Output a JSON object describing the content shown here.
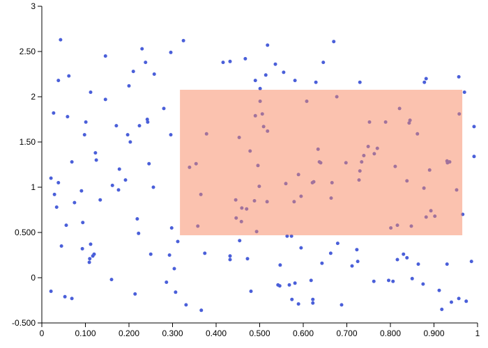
{
  "chart_data": {
    "type": "scatter",
    "color": "#4a5fd9",
    "xlim": [
      0,
      1
    ],
    "ylim": [
      -0.5,
      3
    ],
    "xticks": [
      0,
      {
        "value": 0.1,
        "label": "0.100"
      },
      {
        "value": 0.2,
        "label": "0.200"
      },
      {
        "value": 0.3,
        "label": "0.300"
      },
      {
        "value": 0.4,
        "label": "0.400"
      },
      {
        "value": 0.5,
        "label": "0.500"
      },
      {
        "value": 0.6,
        "label": "0.600"
      },
      {
        "value": 0.7,
        "label": "0.700"
      },
      {
        "value": 0.8,
        "label": "0.800"
      },
      {
        "value": 0.9,
        "label": "0.900"
      },
      1
    ],
    "yticks": [
      {
        "value": -0.5,
        "label": "-0.500"
      },
      0,
      {
        "value": 0.5,
        "label": "0.500"
      },
      1,
      {
        "value": 1.5,
        "label": "1.50"
      },
      2,
      {
        "value": 2.5,
        "label": "2.50"
      },
      3
    ],
    "brush": {
      "x": [
        0.317,
        0.965
      ],
      "y": [
        0.469,
        2.077
      ],
      "color": "#f88660"
    },
    "x": [
      0.021,
      0.021,
      0.027,
      0.029,
      0.034,
      0.038,
      0.038,
      0.043,
      0.045,
      0.053,
      0.056,
      0.059,
      0.062,
      0.069,
      0.069,
      0.075,
      0.091,
      0.093,
      0.094,
      0.098,
      0.101,
      0.109,
      0.11,
      0.112,
      0.112,
      0.117,
      0.12,
      0.123,
      0.125,
      0.134,
      0.146,
      0.146,
      0.16,
      0.162,
      0.171,
      0.176,
      0.178,
      0.192,
      0.197,
      0.2,
      0.203,
      0.21,
      0.214,
      0.219,
      0.222,
      0.224,
      0.23,
      0.238,
      0.242,
      0.243,
      0.246,
      0.25,
      0.256,
      0.258,
      0.28,
      0.286,
      0.293,
      0.296,
      0.296,
      0.298,
      0.304,
      0.307,
      0.312,
      0.325,
      0.331,
      0.374,
      0.366,
      0.416,
      0.432,
      0.432,
      0.432,
      0.454,
      0.467,
      0.472,
      0.48,
      0.49,
      0.501,
      0.518,
      0.514,
      0.536,
      0.555,
      0.542,
      0.546,
      0.547,
      0.568,
      0.573,
      0.574,
      0.581,
      0.581,
      0.589,
      0.595,
      0.618,
      0.622,
      0.622,
      0.629,
      0.643,
      0.646,
      0.663,
      0.67,
      0.679,
      0.688,
      0.712,
      0.723,
      0.725,
      0.73,
      0.762,
      0.796,
      0.806,
      0.816,
      0.83,
      0.838,
      0.85,
      0.864,
      0.875,
      0.878,
      0.882,
      0.912,
      0.918,
      0.93,
      0.94,
      0.957,
      0.957,
      0.97,
      0.966,
      0.974,
      0.986,
      0.992,
      0.992,
      0.339,
      0.354,
      0.358,
      0.365,
      0.378,
      0.445,
      0.453,
      0.446,
      0.458,
      0.459,
      0.47,
      0.478,
      0.488,
      0.49,
      0.493,
      0.496,
      0.499,
      0.501,
      0.506,
      0.509,
      0.517,
      0.518,
      0.56,
      0.563,
      0.579,
      0.589,
      0.595,
      0.608,
      0.621,
      0.624,
      0.634,
      0.637,
      0.64,
      0.664,
      0.666,
      0.677,
      0.698,
      0.728,
      0.73,
      0.734,
      0.739,
      0.749,
      0.752,
      0.763,
      0.77,
      0.789,
      0.801,
      0.811,
      0.816,
      0.821,
      0.838,
      0.843,
      0.845,
      0.848,
      0.862,
      0.877,
      0.882,
      0.89,
      0.893,
      0.902,
      0.93,
      0.931,
      0.936,
      0.952,
      0.958
    ],
    "values": [
      1.1,
      -0.15,
      1.82,
      0.92,
      0.78,
      1.05,
      2.18,
      2.63,
      0.35,
      -0.21,
      0.58,
      1.78,
      2.23,
      -0.23,
      1.28,
      0.83,
      0.96,
      0.32,
      0.61,
      1.58,
      1.72,
      0.17,
      0.21,
      2.05,
      0.37,
      0.24,
      0.26,
      1.38,
      1.3,
      0.86,
      2.45,
      1.97,
      -0.02,
      1.02,
      1.68,
      0.97,
      1.2,
      1.08,
      1.58,
      2.12,
      1.5,
      2.28,
      -0.18,
      0.65,
      0.49,
      1.68,
      2.53,
      2.38,
      1.75,
      1.72,
      1.26,
      0.26,
      1.0,
      2.25,
      1.87,
      -0.05,
      0.25,
      2.49,
      1.58,
      0.55,
      0.1,
      -0.16,
      0.4,
      2.62,
      -0.3,
      0.27,
      -0.36,
      2.38,
      2.39,
      0.24,
      0.2,
      0.41,
      2.42,
      0.21,
      -0.15,
      2.18,
      2.09,
      2.57,
      2.24,
      2.36,
      2.27,
      -0.08,
      -0.09,
      0.14,
      -0.08,
      0.46,
      -0.24,
      2.18,
      -0.06,
      -0.29,
      0.33,
      -0.03,
      -0.24,
      -0.28,
      2.16,
      0.16,
      2.38,
      0.27,
      2.61,
      0.38,
      -0.3,
      0.13,
      0.31,
      0.18,
      2.16,
      -0.04,
      -0.03,
      -0.04,
      0.2,
      0.26,
      0.22,
      -0.01,
      0.15,
      -0.07,
      2.16,
      2.2,
      -0.14,
      -0.35,
      0.15,
      -0.27,
      -0.23,
      2.22,
      2.05,
      0.7,
      -0.26,
      0.18,
      1.67,
      1.34,
      1.22,
      1.26,
      0.57,
      0.92,
      1.59,
      0.86,
      1.55,
      0.66,
      0.62,
      0.77,
      0.76,
      1.4,
      0.85,
      1.79,
      0.51,
      1.24,
      1.01,
      1.95,
      1.81,
      1.67,
      0.84,
      1.62,
      1.04,
      0.46,
      0.84,
      1.14,
      0.9,
      1.95,
      1.05,
      1.06,
      1.42,
      1.28,
      1.27,
      0.88,
      1.05,
      2.0,
      1.27,
      1.08,
      1.18,
      1.28,
      1.35,
      1.45,
      1.72,
      1.37,
      1.43,
      1.72,
      0.55,
      1.23,
      0.58,
      1.87,
      1.07,
      1.71,
      1.74,
      0.57,
      1.59,
      0.99,
      0.67,
      1.19,
      0.74,
      0.68,
      1.29,
      1.27,
      1.28,
      0.97,
      1.81
    ]
  }
}
